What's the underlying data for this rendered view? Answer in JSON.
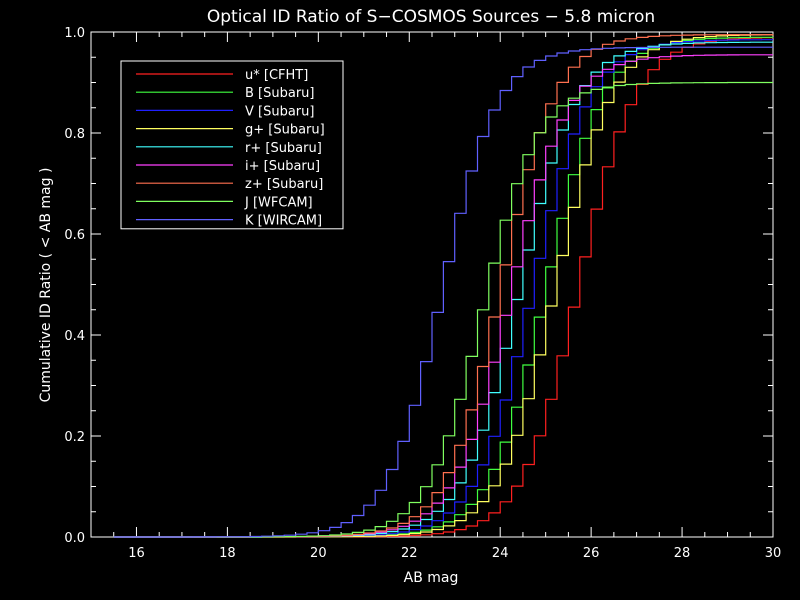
{
  "chart_data": {
    "type": "line",
    "step": true,
    "title": "Optical ID Ratio of S−COSMOS Sources − 5.8 micron",
    "xlabel": "AB mag",
    "ylabel": "Cumulative ID Ratio  ( < AB mag )",
    "xlim": [
      15,
      30
    ],
    "ylim": [
      0,
      1
    ],
    "xticks": [
      16,
      18,
      20,
      22,
      24,
      26,
      28,
      30
    ],
    "yticks": [
      0.0,
      0.2,
      0.4,
      0.6,
      0.8,
      1.0
    ],
    "ytick_labels": [
      "0.0",
      "0.2",
      "0.4",
      "0.6",
      "0.8",
      "1.0"
    ],
    "grid": false,
    "legend_position": "top-left",
    "series": [
      {
        "name": "u* [CFHT]",
        "color": "#ff2020",
        "center": 25.6,
        "width": 0.62,
        "max": 0.99
      },
      {
        "name": "B [Subaru]",
        "color": "#40ff40",
        "center": 24.9,
        "width": 0.62,
        "max": 0.99
      },
      {
        "name": "V [Subaru]",
        "color": "#2020ff",
        "center": 24.6,
        "width": 0.62,
        "max": 0.985
      },
      {
        "name": "g+ [Subaru]",
        "color": "#ffff60",
        "center": 25.1,
        "width": 0.62,
        "max": 0.995
      },
      {
        "name": "r+ [Subaru]",
        "color": "#40ffff",
        "center": 24.3,
        "width": 0.62,
        "max": 0.98
      },
      {
        "name": "i+ [Subaru]",
        "color": "#ff40ff",
        "center": 24.1,
        "width": 0.62,
        "max": 0.955
      },
      {
        "name": "z+ [Subaru]",
        "color": "#ff7050",
        "center": 23.9,
        "width": 0.6,
        "max": 0.995
      },
      {
        "name": "J [WFCAM]",
        "color": "#80ff60",
        "center": 23.5,
        "width": 0.6,
        "max": 0.9
      },
      {
        "name": "K [WIRCAM]",
        "color": "#6060ff",
        "center": 22.6,
        "width": 0.6,
        "max": 0.97
      }
    ]
  }
}
